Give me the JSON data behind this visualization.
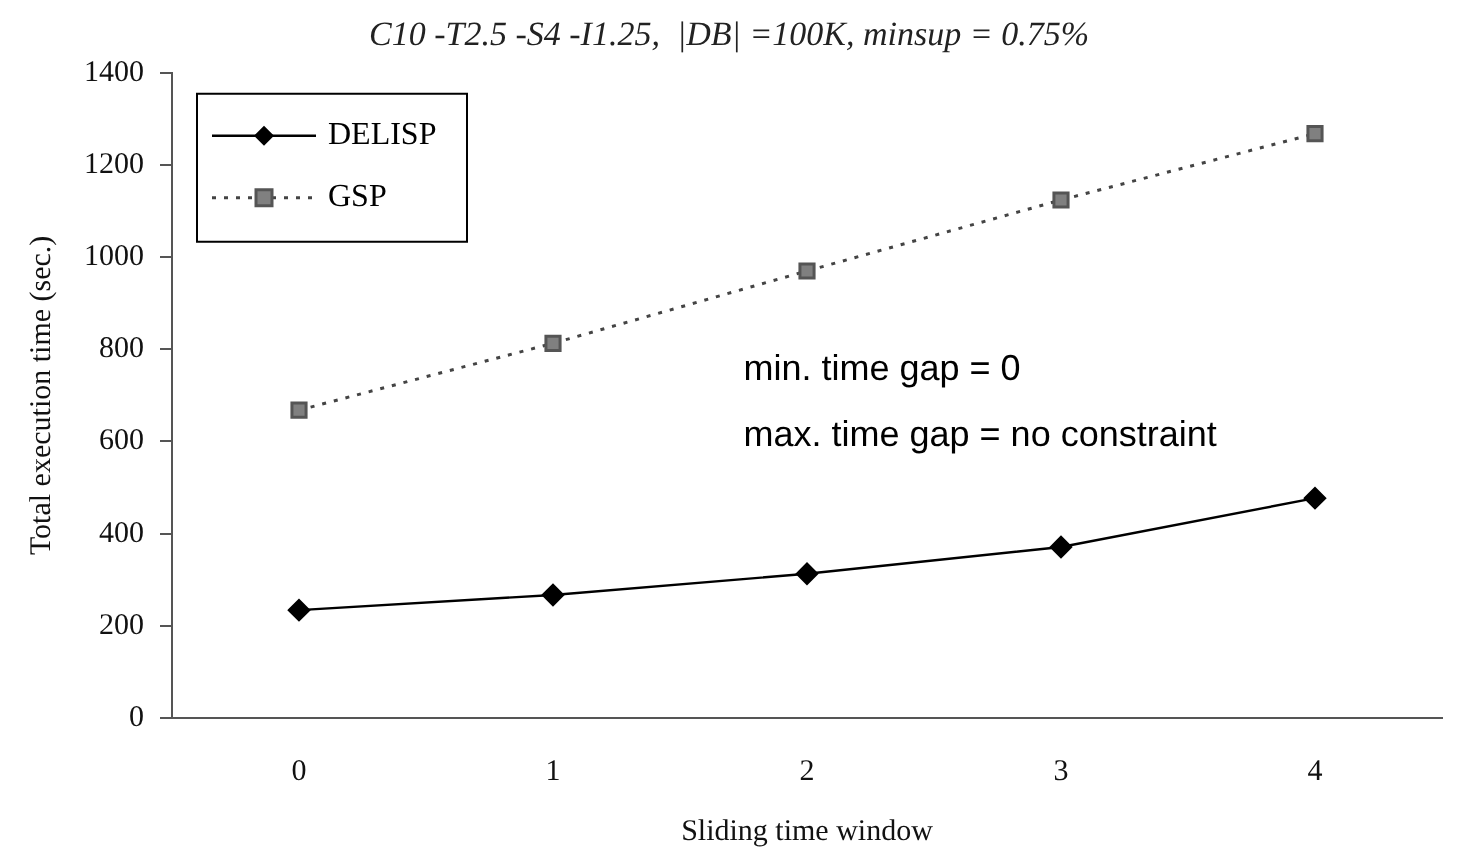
{
  "chart_data": {
    "type": "line",
    "title": "C10 -T2.5 -S4 -I1.25,  |DB| =100K, minsup = 0.75%",
    "xlabel": "Sliding time window",
    "ylabel": "Total execution time (sec.)",
    "categories": [
      "0",
      "1",
      "2",
      "3",
      "4"
    ],
    "series": [
      {
        "name": "DELISP",
        "color": "#000000",
        "values": [
          234,
          267,
          313,
          371,
          477
        ],
        "marker": "diamond",
        "line_style": "solid"
      },
      {
        "name": "GSP",
        "color": "#808080",
        "values": [
          668,
          813,
          970,
          1124,
          1268
        ],
        "marker": "square",
        "line_style": "dotted"
      }
    ],
    "ylim": [
      0,
      1400
    ],
    "yticks": [
      0,
      200,
      400,
      600,
      800,
      1000,
      1200,
      1400
    ],
    "grid": false,
    "legend": "top left",
    "annotations": [
      "min. time gap = 0",
      "max. time gap = no constraint"
    ]
  }
}
